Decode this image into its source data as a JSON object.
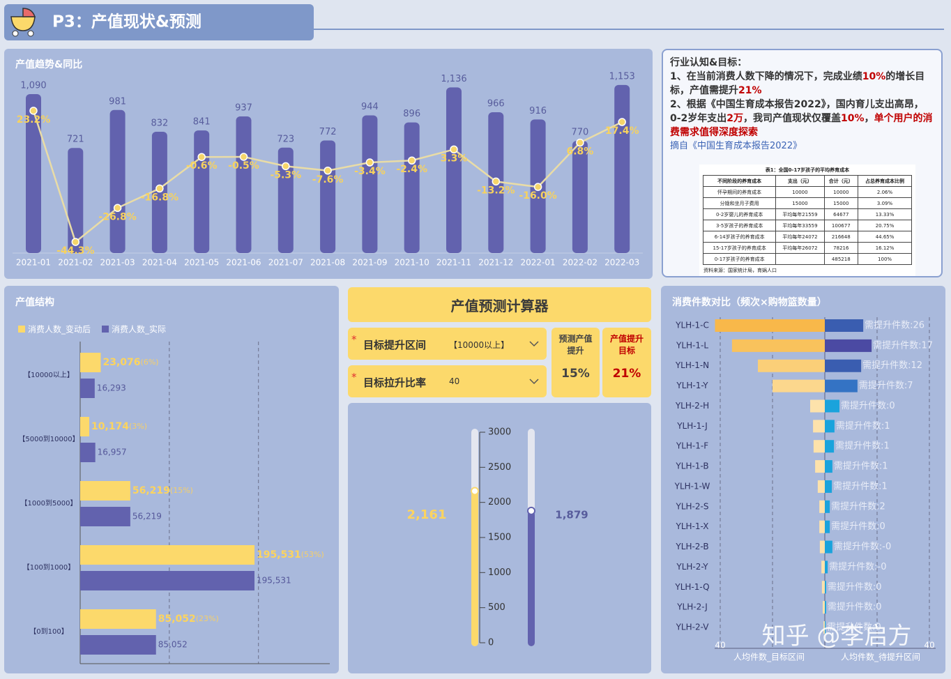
{
  "header": {
    "title": "P3：产值现状&预测"
  },
  "chart_data": [
    {
      "type": "bar-line",
      "title": "产值趋势&同比",
      "categories": [
        "2021-01",
        "2021-02",
        "2021-03",
        "2021-04",
        "2021-05",
        "2021-06",
        "2021-07",
        "2021-08",
        "2021-09",
        "2021-10",
        "2021-11",
        "2021-12",
        "2022-01",
        "2022-02",
        "2022-03"
      ],
      "series": [
        {
          "type": "bar",
          "color": "#6262ae",
          "values": [
            1090,
            721,
            981,
            832,
            841,
            937,
            723,
            772,
            944,
            896,
            1136,
            966,
            916,
            770,
            1153
          ],
          "value_labels": [
            "1,090",
            "721",
            "981",
            "832",
            "841",
            "937",
            "723",
            "772",
            "944",
            "896",
            "1,136",
            "966",
            "916",
            "770",
            "1,153"
          ]
        },
        {
          "type": "line",
          "axis": "y2",
          "color": "#e9dca6",
          "values": [
            23.2,
            -44.3,
            -26.8,
            -16.8,
            -0.6,
            -0.5,
            -5.3,
            -7.6,
            -3.4,
            -2.4,
            3.3,
            -13.2,
            -16.0,
            6.8,
            17.4
          ],
          "value_labels": [
            "23.2%",
            "-44.3%",
            "-26.8%",
            "-16.8%",
            "-0.6%",
            "-0.5%",
            "-5.3%",
            "-7.6%",
            "-3.4%",
            "-2.4%",
            "3.3%",
            "-13.2%",
            "-16.0%",
            "6.8%",
            "17.4%"
          ]
        }
      ],
      "ylim": [
        0,
        1200
      ],
      "y2lim": [
        -50,
        40
      ]
    },
    {
      "type": "hbar",
      "title": "产值结构",
      "categories": [
        "【10000以上】",
        "【5000到10000】",
        "【1000到5000】",
        "【100到1000】",
        "【0到100】"
      ],
      "series": [
        {
          "name": "消费人数_变动后",
          "color": "#fcd96b",
          "values": [
            23076,
            10174,
            56219,
            195531,
            85052
          ],
          "value_labels": [
            "23,076",
            "10,174",
            "56,219",
            "195,531",
            "85,052"
          ],
          "shares": [
            6,
            3,
            15,
            53,
            23
          ],
          "share_labels": [
            "(6%)",
            "(3%)",
            "(15%)",
            "(53%)",
            "(23%)"
          ]
        },
        {
          "name": "消费人数_实际",
          "color": "#6262ae",
          "values": [
            16293,
            16957,
            56219,
            195531,
            85052
          ],
          "value_labels": [
            "16,293",
            "16,957",
            "56,219",
            "195,531",
            "85,052"
          ]
        }
      ],
      "xlim": [
        0,
        280000
      ],
      "gridlines": [
        100000,
        200000
      ]
    },
    {
      "type": "slider",
      "ylim": [
        0,
        3000
      ],
      "yticks": [
        0,
        500,
        1000,
        1500,
        2000,
        2500,
        3000
      ],
      "series": [
        {
          "color": "#fcd96b",
          "values": [
            2161
          ],
          "value_labels": [
            "2,161"
          ]
        },
        {
          "color": "#6262ae",
          "values": [
            1879
          ],
          "value_labels": [
            "1,879"
          ]
        }
      ]
    },
    {
      "type": "butterfly",
      "title": "消费件数对比（频次×购物篮数量）",
      "categories": [
        "YLH-1-C",
        "YLH-1-L",
        "YLH-1-N",
        "YLH-1-Y",
        "YLH-2-H",
        "YLH-1-J",
        "YLH-1-F",
        "YLH-1-B",
        "YLH-1-W",
        "YLH-2-S",
        "YLH-1-X",
        "YLH-2-B",
        "YLH-2-Y",
        "YLH-1-Q",
        "YLH-2-J",
        "YLH-2-V"
      ],
      "series": [
        {
          "name": "人均件数_目标区间",
          "values": [
            42,
            35.5,
            25.6,
            20,
            5.6,
            4.5,
            4.3,
            3.7,
            2.7,
            2.1,
            2.1,
            1.9,
            1.3,
            1.1,
            0.8,
            0.5
          ],
          "colors": [
            "#f8b84a",
            "#f9c25c",
            "#fbcf78",
            "#fcd78d",
            "#fde2ab",
            "#fde2ab",
            "#fde2ab",
            "#fde2ab",
            "#fde2ab",
            "#fde2ab",
            "#fde2ab",
            "#fde2ab",
            "#fde2ab",
            "#fde2ab",
            "#fde2ab",
            "#fde2ab"
          ]
        },
        {
          "name": "人均件数_待提升区间",
          "values": [
            14.7,
            17.9,
            13.9,
            12.5,
            5.6,
            3.7,
            3.5,
            2.9,
            2.7,
            1.9,
            1.9,
            2.9,
            1.1,
            0.5,
            0.5,
            0.3
          ],
          "colors": [
            "#3a5db0",
            "#4b4aa3",
            "#3a5db0",
            "#3473c4",
            "#1aa3dc",
            "#1aa3dc",
            "#1aa3dc",
            "#1aa3dc",
            "#1aa3dc",
            "#1aa3dc",
            "#1aa3dc",
            "#1aa3dc",
            "#1aa3dc",
            "#1aa3dc",
            "#1aa3dc",
            "#1aa3dc"
          ],
          "note_values": [
            26,
            17,
            12,
            7,
            0,
            1,
            1,
            1,
            1,
            2,
            0,
            0,
            0,
            0,
            0,
            0
          ],
          "note_labels": [
            "需提升件数:26",
            "需提升件数:17",
            "需提升件数:12",
            "需提升件数:7",
            "需提升件数:0",
            "需提升件数:1",
            "需提升件数:1",
            "需提升件数:1",
            "需提升件数:1",
            "需提升件数:2",
            "需提升件数:0",
            "需提升件数:-0",
            "需提升件数:-0",
            "需提升件数:0",
            "需提升件数:0",
            "需提升件数:0"
          ]
        }
      ],
      "xlim": [
        0,
        40
      ],
      "xticks": [
        40
      ],
      "gridlines": [
        20,
        40
      ]
    }
  ],
  "notes": {
    "title": "行业认知&目标：",
    "paragraphs": [
      [
        {
          "text": "1、在当前消费人数下降的情况下，完成业绩"
        },
        {
          "text": "10%",
          "color": "#c00000"
        },
        {
          "text": "的增长目标，产值需提升"
        },
        {
          "text": "21%",
          "color": "#c00000"
        }
      ],
      [
        {
          "text": "2、根据《中国生育成本报告2022》，国内育儿支出高昂，0-2岁年支出"
        },
        {
          "text": "2万",
          "color": "#c00000"
        },
        {
          "text": "，我司产值现状仅覆盖"
        },
        {
          "text": "10%",
          "color": "#c00000"
        },
        {
          "text": "，"
        },
        {
          "text": "单个用户的消费需求值得深度探索",
          "color": "#c00000"
        }
      ]
    ],
    "source": "摘自《中国生育成本报告2022》"
  },
  "reference_table": {
    "caption": "表1：全国0-17岁孩子的平均养育成本",
    "columns": [
      "不同阶段的养育成本",
      "支出（元）",
      "合计（元）",
      "占总养育成本比例"
    ],
    "rows": [
      [
        "怀孕期间的养育成本",
        "10000",
        "10000",
        "2.06%"
      ],
      [
        "分娩和坐月子费用",
        "15000",
        "15000",
        "3.09%"
      ],
      [
        "0-2岁婴儿的养育成本",
        "平均每年21559",
        "64677",
        "13.33%"
      ],
      [
        "3-5岁孩子的养育成本",
        "平均每年33559",
        "100677",
        "20.75%"
      ],
      [
        "6-14岁孩子的养育成本",
        "平均每年24072",
        "216648",
        "44.65%"
      ],
      [
        "15-17岁孩子的养育成本",
        "平均每年26072",
        "78216",
        "16.12%"
      ],
      [
        "0-17岁孩子的养育成本",
        null,
        "485218",
        "100%"
      ]
    ],
    "footnote": "资料来源：国家统计局，育娲人口"
  },
  "calculator": {
    "title": "产值预测计算器",
    "fields": [
      {
        "label": "目标提升区间",
        "value": "【10000以上】"
      },
      {
        "label": "目标拉升比率",
        "value": 40
      }
    ],
    "cards": [
      {
        "label": "预测产值提升",
        "value": 15,
        "value_label": "15%"
      },
      {
        "label": "产值提升目标",
        "value": 21,
        "value_label": "21%"
      }
    ]
  },
  "watermark": "知乎 @李启方"
}
